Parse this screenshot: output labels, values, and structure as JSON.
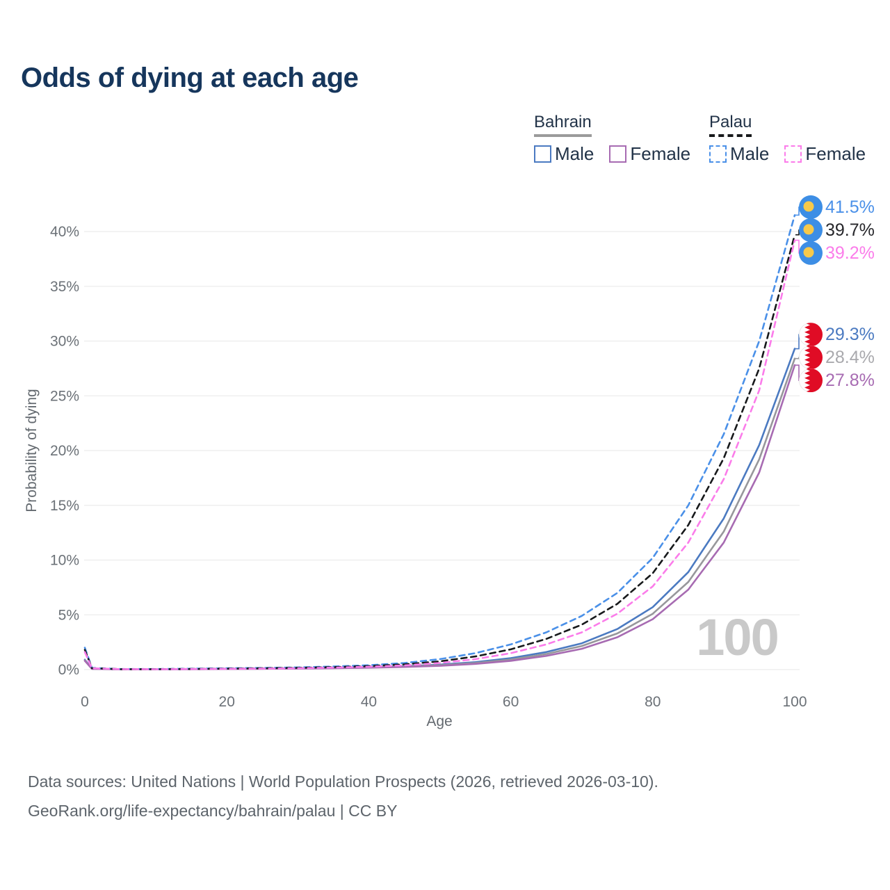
{
  "title": "Odds of dying at each age",
  "legend": {
    "groups": [
      {
        "country": "Bahrain",
        "line_style": "solid",
        "items": [
          {
            "label": "Male"
          },
          {
            "label": "Female"
          }
        ]
      },
      {
        "country": "Palau",
        "line_style": "dashed",
        "items": [
          {
            "label": "Male"
          },
          {
            "label": "Female"
          }
        ]
      }
    ]
  },
  "chart_data": {
    "type": "line",
    "xlabel": "Age",
    "ylabel": "Probability of dying",
    "x_ticks": [
      0,
      20,
      40,
      60,
      80,
      100
    ],
    "y_ticks": [
      0,
      5,
      10,
      15,
      20,
      25,
      30,
      35,
      40
    ],
    "y_tick_suffix": "%",
    "xlim": [
      0,
      100
    ],
    "ylim": [
      0,
      43
    ],
    "grid": "horizontal",
    "watermark": "100",
    "x": [
      0,
      1,
      5,
      10,
      15,
      20,
      25,
      30,
      35,
      40,
      45,
      50,
      55,
      60,
      65,
      70,
      75,
      80,
      85,
      90,
      95,
      100
    ],
    "series": [
      {
        "name": "Palau Male",
        "country": "Palau",
        "sex": "Male",
        "dash": true,
        "color": "#4a90e8",
        "label_color": "#4a90e8",
        "end_label": "41.5%",
        "values": [
          2.0,
          0.15,
          0.05,
          0.05,
          0.08,
          0.12,
          0.15,
          0.2,
          0.28,
          0.4,
          0.6,
          0.95,
          1.5,
          2.3,
          3.4,
          4.9,
          7.0,
          10.2,
          15.0,
          21.5,
          30.0,
          41.5
        ]
      },
      {
        "name": "Palau Total",
        "country": "Palau",
        "sex": "Total",
        "dash": true,
        "color": "#17191b",
        "label_color": "#26262a",
        "end_label": "39.7%",
        "values": [
          1.8,
          0.13,
          0.04,
          0.04,
          0.06,
          0.09,
          0.12,
          0.16,
          0.22,
          0.32,
          0.48,
          0.75,
          1.2,
          1.85,
          2.8,
          4.1,
          6.0,
          8.8,
          13.2,
          19.3,
          27.5,
          39.7
        ]
      },
      {
        "name": "Palau Female",
        "country": "Palau",
        "sex": "Female",
        "dash": true,
        "color": "#fb7cea",
        "label_color": "#fb7cea",
        "end_label": "39.2%",
        "values": [
          1.6,
          0.12,
          0.04,
          0.03,
          0.05,
          0.07,
          0.09,
          0.12,
          0.18,
          0.26,
          0.38,
          0.6,
          0.95,
          1.5,
          2.3,
          3.4,
          5.1,
          7.6,
          11.6,
          17.4,
          25.5,
          39.2
        ]
      },
      {
        "name": "Bahrain Male",
        "country": "Bahrain",
        "sex": "Male",
        "dash": false,
        "color": "#4b7ac1",
        "label_color": "#4b7ac1",
        "end_label": "29.3%",
        "values": [
          0.9,
          0.08,
          0.03,
          0.03,
          0.05,
          0.08,
          0.1,
          0.13,
          0.17,
          0.23,
          0.32,
          0.45,
          0.68,
          1.05,
          1.6,
          2.4,
          3.7,
          5.7,
          8.9,
          13.8,
          20.5,
          29.3
        ]
      },
      {
        "name": "Bahrain Total",
        "country": "Bahrain",
        "sex": "Total",
        "dash": false,
        "color": "#97979b",
        "label_color": "#a9a9ad",
        "end_label": "28.4%",
        "values": [
          0.85,
          0.07,
          0.03,
          0.03,
          0.04,
          0.07,
          0.09,
          0.11,
          0.15,
          0.2,
          0.28,
          0.4,
          0.6,
          0.92,
          1.42,
          2.15,
          3.3,
          5.1,
          8.0,
          12.6,
          19.2,
          28.4
        ]
      },
      {
        "name": "Bahrain Female",
        "country": "Bahrain",
        "sex": "Female",
        "dash": false,
        "color": "#a76bb2",
        "label_color": "#a76bb2",
        "end_label": "27.8%",
        "values": [
          0.8,
          0.07,
          0.02,
          0.02,
          0.04,
          0.05,
          0.07,
          0.09,
          0.12,
          0.17,
          0.24,
          0.34,
          0.52,
          0.8,
          1.25,
          1.9,
          2.95,
          4.6,
          7.3,
          11.6,
          18.0,
          27.8
        ]
      }
    ],
    "flag_colors": {
      "palau_blue": "#3d8ee5",
      "palau_yellow": "#f7c94a",
      "bahrain_red": "#e00c25",
      "bahrain_white": "#ffffff"
    },
    "style_colors": {
      "gridline": "#ececec",
      "tick_text": "#6b7177",
      "watermark": "#c9c9c9",
      "title_navy": "#16365c"
    }
  },
  "footer": {
    "line1": "Data sources: United Nations | World Population Prospects (2026, retrieved 2026-03-10).",
    "line2": "GeoRank.org/life-expectancy/bahrain/palau | CC BY"
  }
}
